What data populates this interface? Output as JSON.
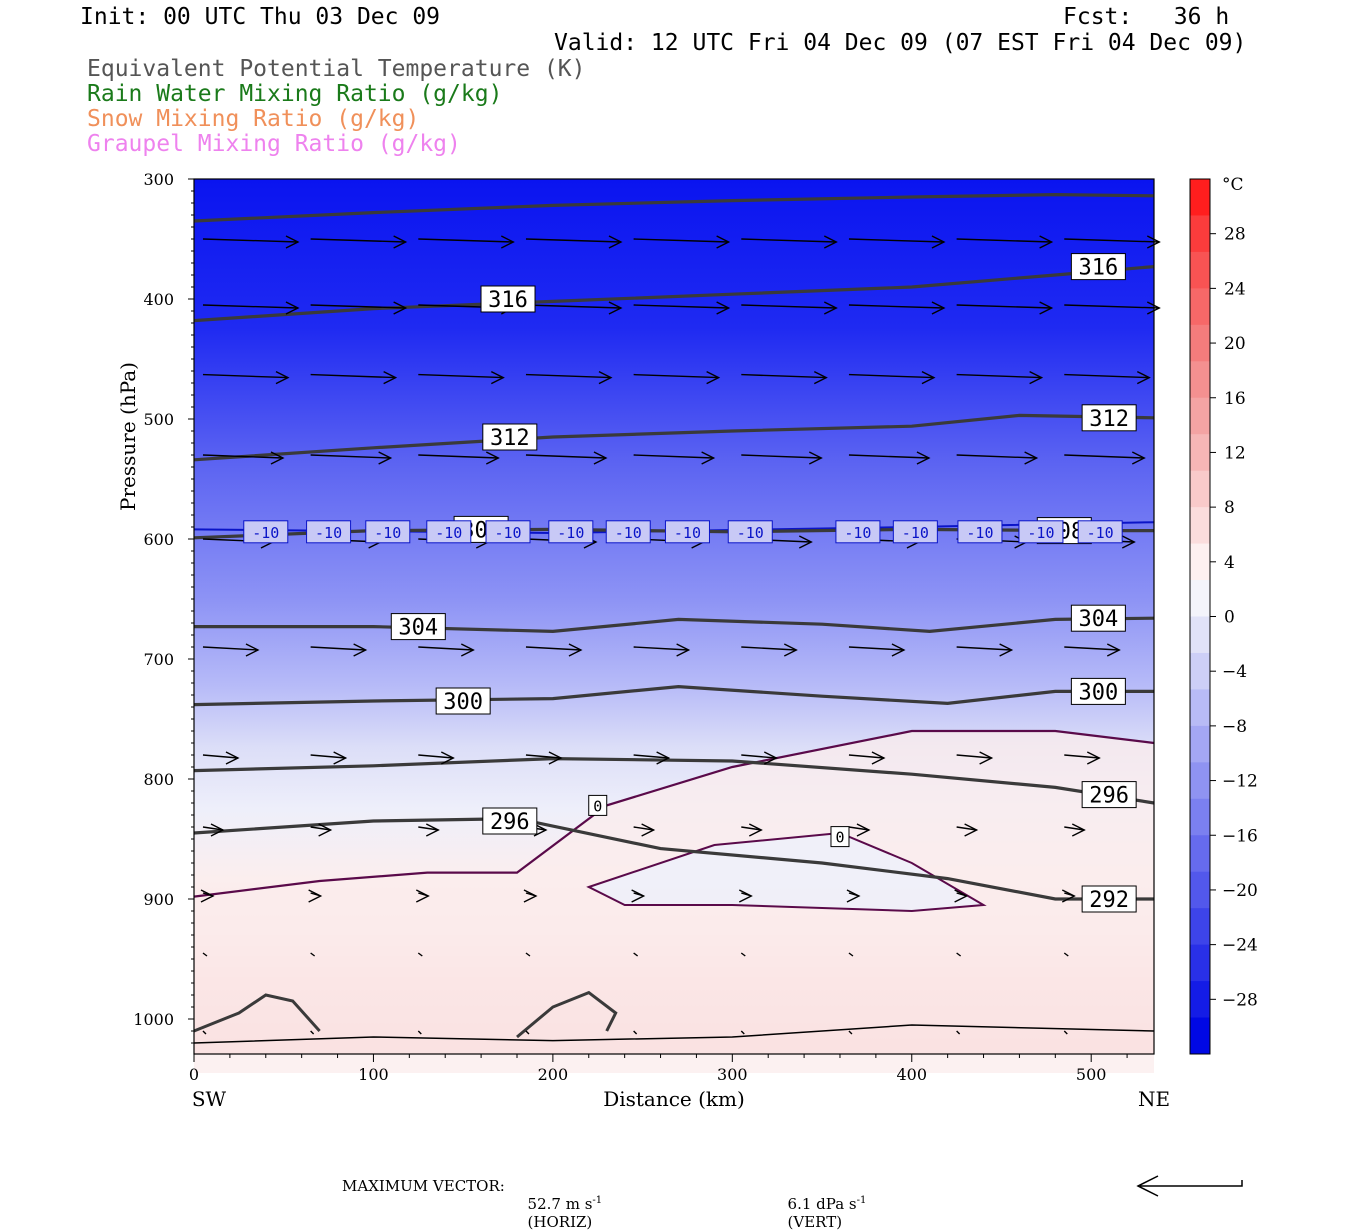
{
  "header": {
    "init": "Init: 00 UTC Thu 03 Dec 09",
    "fcst": "Fcst:   36 h",
    "valid": "Valid: 12 UTC Fri 04 Dec 09 (07 EST Fri 04 Dec 09)"
  },
  "legend": [
    {
      "label": "Equivalent Potential Temperature (K)",
      "color": "#555555"
    },
    {
      "label": "Rain Water Mixing Ratio (g/kg)",
      "color": "#1a7a1a"
    },
    {
      "label": "Snow Mixing Ratio (g/kg)",
      "color": "#f0905a"
    },
    {
      "label": "Graupel Mixing Ratio (g/kg)",
      "color": "#ee82ee"
    }
  ],
  "chart_data": {
    "type": "cross-section contour",
    "xlabel": "Distance (km)",
    "ylabel": "Pressure (hPa)",
    "x_ticks": [
      0,
      100,
      200,
      300,
      400,
      500
    ],
    "y_ticks": [
      300,
      400,
      500,
      600,
      700,
      800,
      900,
      1000
    ],
    "xlim": [
      0,
      535
    ],
    "ylim": [
      300,
      1030
    ],
    "left_end_label": "SW",
    "right_end_label": "NE",
    "colorbar": {
      "unit": "°C",
      "levels": [
        28,
        24,
        20,
        16,
        12,
        8,
        4,
        0,
        -4,
        -8,
        -12,
        -16,
        -20,
        -24,
        -28
      ],
      "range": [
        -32,
        32
      ]
    },
    "theta_e_contours": [
      {
        "value": 316,
        "points": [
          [
            0,
            335
          ],
          [
            100,
            328
          ],
          [
            200,
            322
          ],
          [
            300,
            318
          ],
          [
            400,
            315
          ],
          [
            480,
            313
          ],
          [
            535,
            314
          ]
        ]
      },
      {
        "value": 316,
        "points": [
          [
            0,
            418
          ],
          [
            100,
            408
          ],
          [
            200,
            402
          ],
          [
            300,
            396
          ],
          [
            400,
            390
          ],
          [
            480,
            380
          ],
          [
            535,
            373
          ]
        ]
      },
      {
        "value": 312,
        "points": [
          [
            0,
            534
          ],
          [
            100,
            524
          ],
          [
            200,
            515
          ],
          [
            300,
            510
          ],
          [
            400,
            506
          ],
          [
            460,
            497
          ],
          [
            535,
            499
          ]
        ]
      },
      {
        "value": 308,
        "points": [
          [
            0,
            599
          ],
          [
            100,
            593
          ],
          [
            200,
            592
          ],
          [
            300,
            594
          ],
          [
            400,
            592
          ],
          [
            500,
            593
          ],
          [
            535,
            593
          ]
        ]
      },
      {
        "value": 304,
        "points": [
          [
            0,
            673
          ],
          [
            100,
            673
          ],
          [
            200,
            677
          ],
          [
            270,
            667
          ],
          [
            350,
            671
          ],
          [
            410,
            677
          ],
          [
            480,
            667
          ],
          [
            535,
            666
          ]
        ]
      },
      {
        "value": 300,
        "points": [
          [
            0,
            738
          ],
          [
            100,
            735
          ],
          [
            200,
            733
          ],
          [
            270,
            723
          ],
          [
            350,
            731
          ],
          [
            420,
            737
          ],
          [
            480,
            727
          ],
          [
            535,
            727
          ]
        ]
      },
      {
        "value": 296,
        "points": [
          [
            0,
            793
          ],
          [
            100,
            789
          ],
          [
            200,
            783
          ],
          [
            300,
            785
          ],
          [
            400,
            796
          ],
          [
            480,
            807
          ],
          [
            535,
            820
          ]
        ]
      },
      {
        "value": 292,
        "points": [
          [
            0,
            845
          ],
          [
            100,
            835
          ],
          [
            180,
            833
          ],
          [
            260,
            858
          ],
          [
            350,
            870
          ],
          [
            420,
            883
          ],
          [
            480,
            900
          ],
          [
            535,
            900
          ]
        ]
      }
    ],
    "zero_isotherm_label": "0",
    "isotherm_labels": [
      "-10"
    ],
    "theta_e_labels": [
      316,
      312,
      308,
      304,
      300,
      296,
      292
    ],
    "wind_vectors_sample": "vectors westerly aloft, weakening toward surface"
  },
  "footer": {
    "max_vector_label": "MAXIMUM VECTOR:",
    "horiz_value": "52.7 m s",
    "horiz_unit": "(HORIZ)",
    "vert_value": "6.1 dPa s",
    "vert_unit": "(VERT)",
    "exp": "-1"
  }
}
